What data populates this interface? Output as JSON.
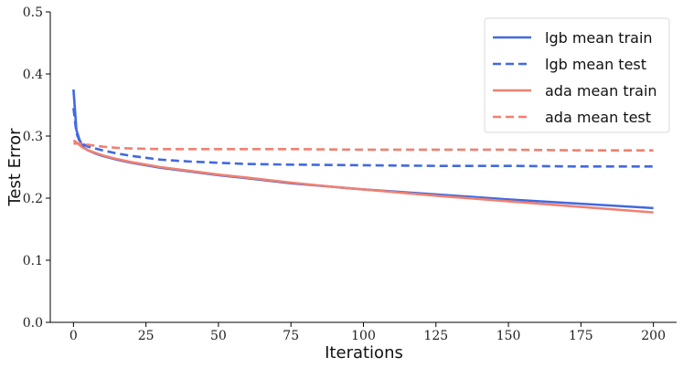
{
  "chart_data": {
    "type": "line",
    "title": "",
    "xlabel": "Iterations",
    "ylabel": "Test Error",
    "xlim": [
      -8,
      208
    ],
    "ylim": [
      0,
      0.5
    ],
    "xticks": [
      0,
      25,
      50,
      75,
      100,
      125,
      150,
      175,
      200
    ],
    "xtick_labels": [
      "0",
      "25",
      "50",
      "75",
      "100",
      "125",
      "150",
      "175",
      "200"
    ],
    "yticks": [
      0.0,
      0.1,
      0.2,
      0.3,
      0.4,
      0.5
    ],
    "ytick_labels": [
      "0.0",
      "0.1",
      "0.2",
      "0.3",
      "0.4",
      "0.5"
    ],
    "grid": false,
    "legend": "top-right",
    "series": [
      {
        "name": "lgb mean train",
        "color": "#4169e1",
        "style": "solid",
        "x": [
          0,
          1,
          2,
          3,
          4,
          5,
          7,
          10,
          15,
          20,
          25,
          30,
          40,
          50,
          60,
          75,
          90,
          100,
          125,
          150,
          175,
          200
        ],
        "y": [
          0.375,
          0.31,
          0.295,
          0.285,
          0.28,
          0.277,
          0.273,
          0.268,
          0.262,
          0.257,
          0.253,
          0.249,
          0.243,
          0.237,
          0.232,
          0.224,
          0.218,
          0.214,
          0.206,
          0.198,
          0.191,
          0.184
        ]
      },
      {
        "name": "lgb mean test",
        "color": "#4169e1",
        "style": "dashed",
        "x": [
          0,
          1,
          2,
          3,
          5,
          10,
          15,
          20,
          25,
          30,
          40,
          50,
          60,
          75,
          100,
          125,
          150,
          175,
          200
        ],
        "y": [
          0.345,
          0.305,
          0.293,
          0.288,
          0.283,
          0.277,
          0.272,
          0.268,
          0.265,
          0.262,
          0.259,
          0.257,
          0.255,
          0.254,
          0.253,
          0.252,
          0.252,
          0.251,
          0.251
        ]
      },
      {
        "name": "ada mean train",
        "color": "#f08070",
        "style": "solid",
        "x": [
          0,
          1,
          2,
          3,
          5,
          10,
          15,
          20,
          25,
          30,
          40,
          50,
          60,
          75,
          90,
          100,
          125,
          150,
          175,
          200
        ],
        "y": [
          0.293,
          0.29,
          0.286,
          0.282,
          0.277,
          0.269,
          0.263,
          0.258,
          0.254,
          0.25,
          0.244,
          0.238,
          0.233,
          0.225,
          0.218,
          0.214,
          0.204,
          0.195,
          0.186,
          0.177
        ]
      },
      {
        "name": "ada mean test",
        "color": "#f08070",
        "style": "dashed",
        "x": [
          0,
          2,
          5,
          10,
          15,
          20,
          30,
          50,
          75,
          100,
          125,
          150,
          175,
          200
        ],
        "y": [
          0.288,
          0.288,
          0.286,
          0.283,
          0.281,
          0.28,
          0.279,
          0.279,
          0.279,
          0.278,
          0.278,
          0.278,
          0.277,
          0.277
        ]
      }
    ]
  }
}
